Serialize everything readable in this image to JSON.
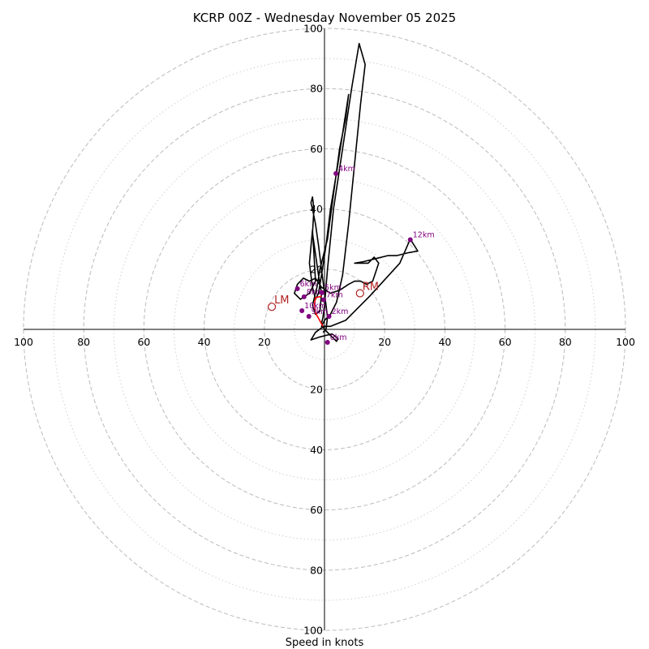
{
  "chart_data": {
    "type": "line",
    "title": "KCRP 00Z - Wednesday November 05 2025",
    "xlabel": "Speed in knots",
    "rings": [
      20,
      40,
      60,
      80,
      100
    ],
    "minor_rings": [
      10,
      30,
      50,
      70,
      90
    ],
    "range": [
      -100,
      100
    ],
    "tick_labels": [
      "20",
      "40",
      "60",
      "80",
      "100"
    ],
    "colors": {
      "trace": "#000000",
      "height": "#800080",
      "motion": "#b22222",
      "mean": "#ff0000",
      "grid": "#bbbbbb"
    },
    "series": [
      {
        "points": [
          [
            -0.5,
            -1
          ],
          [
            0.5,
            0
          ],
          [
            1,
            4
          ],
          [
            0.5,
            8
          ],
          [
            0,
            12
          ],
          [
            -1,
            20
          ],
          [
            -2,
            28
          ],
          [
            -3,
            35
          ],
          [
            -4,
            40
          ],
          [
            -4.5,
            42
          ],
          [
            -4,
            44
          ],
          [
            -3.5,
            40
          ],
          [
            -4,
            32
          ],
          [
            -3,
            25
          ],
          [
            -2,
            18
          ],
          [
            -1,
            12
          ],
          [
            -1.5,
            6
          ],
          [
            -3,
            5
          ],
          [
            -4,
            8
          ],
          [
            -2.5,
            14
          ],
          [
            -1.5,
            20
          ],
          [
            1,
            30
          ],
          [
            3,
            45
          ],
          [
            5,
            60
          ],
          [
            7,
            70
          ],
          [
            8,
            78
          ],
          [
            6,
            65
          ],
          [
            4,
            52
          ],
          [
            2,
            40
          ],
          [
            0.5,
            28
          ],
          [
            -1,
            18
          ],
          [
            -2,
            12
          ],
          [
            -3,
            10
          ],
          [
            -4,
            14
          ],
          [
            -5,
            22
          ],
          [
            -4,
            33
          ],
          [
            -3.5,
            25
          ],
          [
            -3,
            16
          ],
          [
            -5,
            12
          ],
          [
            -8,
            10
          ],
          [
            -10,
            12
          ],
          [
            -9,
            15
          ],
          [
            -7,
            17
          ],
          [
            -5,
            16
          ],
          [
            -3,
            17
          ],
          [
            -1,
            14
          ],
          [
            2,
            12
          ],
          [
            5,
            13
          ],
          [
            8,
            15
          ],
          [
            10,
            16
          ],
          [
            12,
            16
          ],
          [
            14,
            15
          ],
          [
            16,
            16
          ],
          [
            18,
            22
          ],
          [
            16.5,
            24
          ],
          [
            14.5,
            22
          ],
          [
            10,
            22
          ],
          [
            13,
            22.5
          ],
          [
            17,
            23.5
          ],
          [
            21,
            24.5
          ],
          [
            24,
            24.5
          ],
          [
            28,
            25.5
          ],
          [
            31,
            26
          ],
          [
            28.5,
            30
          ],
          [
            25,
            22
          ],
          [
            15,
            11
          ],
          [
            7,
            3
          ],
          [
            2,
            1
          ],
          [
            -1,
            1
          ],
          [
            0,
            3
          ],
          [
            2,
            5
          ],
          [
            4,
            9
          ],
          [
            6,
            18
          ],
          [
            8,
            35
          ],
          [
            10,
            55
          ],
          [
            12,
            75
          ],
          [
            13.5,
            88
          ],
          [
            11.5,
            95
          ],
          [
            9,
            80
          ],
          [
            6,
            60
          ],
          [
            3,
            40
          ],
          [
            1,
            20
          ],
          [
            0,
            8
          ],
          [
            -0.5,
            4
          ],
          [
            -1,
            2
          ],
          [
            0,
            0
          ],
          [
            2,
            -2
          ],
          [
            4,
            -4
          ],
          [
            4.5,
            -3
          ],
          [
            2.5,
            -1.5
          ],
          [
            -1.5,
            -2.5
          ],
          [
            -4.5,
            -3.5
          ],
          [
            -3,
            -1
          ],
          [
            -1,
            0.5
          ],
          [
            0,
            1
          ]
        ]
      }
    ],
    "height_markers": [
      {
        "label": "0km",
        "u": 1,
        "v": -4.3
      },
      {
        "label": "2km",
        "u": 1.5,
        "v": 4.3
      },
      {
        "label": "4km",
        "u": 3.8,
        "v": 51.8
      },
      {
        "label": "5km",
        "u": -0.8,
        "v": 12.2
      },
      {
        "label": "6km",
        "u": -9,
        "v": 13.5
      },
      {
        "label": "7km",
        "u": -0.3,
        "v": 9.8
      },
      {
        "label": "8km",
        "u": -6.8,
        "v": 10.8
      },
      {
        "label": "9km",
        "u": -5.2,
        "v": 4.3
      },
      {
        "label": "10km",
        "u": -7.5,
        "v": 6.2
      },
      {
        "label": "12km",
        "u": 28.5,
        "v": 29.8
      }
    ],
    "storm_motion": [
      {
        "label": "RM",
        "u": 11.8,
        "v": 12
      },
      {
        "label": "LM",
        "u": -17.5,
        "v": 7.5
      }
    ],
    "mean_wind_path": [
      [
        -0.5,
        1
      ],
      [
        -3,
        5.5
      ],
      [
        -3.3,
        8.5
      ],
      [
        -3,
        10.5
      ],
      [
        -1,
        11
      ]
    ]
  }
}
